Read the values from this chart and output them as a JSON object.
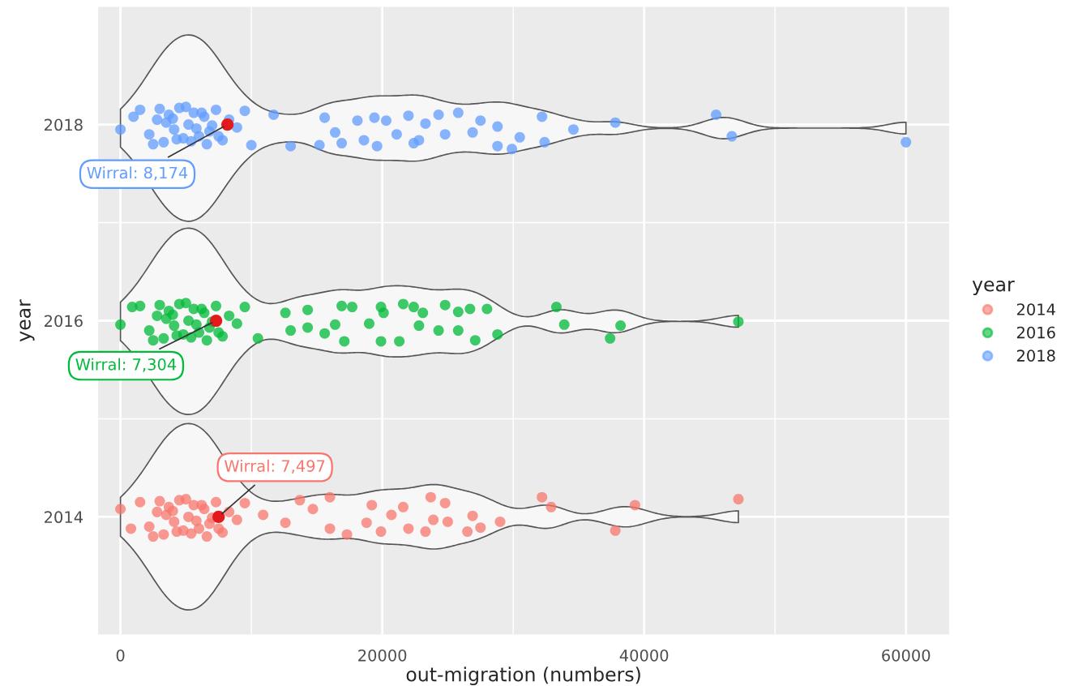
{
  "chart_data": {
    "type": "scatter",
    "xlabel": "out-migration (numbers)",
    "ylabel": "year",
    "legend_title": "year",
    "legend": "right",
    "grid": true,
    "marker": "circle",
    "xlim": [
      -1700,
      63300
    ],
    "xticks": [
      0,
      20000,
      40000,
      60000
    ],
    "ylim": [
      2012.8,
      2019.2
    ],
    "yticks": [
      2014,
      2016,
      2018
    ],
    "series": [
      {
        "name": "2014",
        "color": "#f8766d",
        "x": [
          1500,
          2200,
          2800,
          3300,
          3700,
          4100,
          4500,
          4800,
          5200,
          5600,
          6000,
          6400,
          6800,
          7300,
          7800,
          8300,
          8900,
          9500,
          2500,
          3500,
          4300,
          5000,
          5800,
          6600,
          7500,
          3000,
          4000,
          5400,
          6200,
          7000,
          0,
          800,
          16000,
          19200,
          21600,
          23700,
          24800,
          32200,
          32900,
          39300,
          47200,
          16000,
          17300,
          18800,
          19900,
          22000,
          23300,
          23900,
          25000,
          26500,
          27500,
          29000,
          37800,
          13700,
          12600,
          10900,
          14700,
          20700,
          26900
        ],
        "values": [
          2014.15,
          2013.9,
          2014.05,
          2013.82,
          2014.1,
          2013.95,
          2014.17,
          2013.86,
          2014.0,
          2014.12,
          2013.88,
          2014.08,
          2013.93,
          2014.15,
          2013.84,
          2014.05,
          2013.97,
          2014.14,
          2013.8,
          2014.02,
          2013.85,
          2014.18,
          2013.96,
          2013.8,
          2013.88,
          2014.16,
          2014.06,
          2013.83,
          2014.12,
          2013.99,
          2014.08,
          2013.88,
          2014.2,
          2014.12,
          2014.1,
          2014.2,
          2014.14,
          2014.2,
          2014.1,
          2014.12,
          2014.18,
          2013.88,
          2013.82,
          2013.94,
          2013.85,
          2013.88,
          2013.85,
          2013.97,
          2013.95,
          2013.85,
          2013.89,
          2013.95,
          2013.86,
          2014.17,
          2013.94,
          2014.02,
          2014.08,
          2014.02,
          2014.01
        ]
      },
      {
        "name": "2016",
        "color": "#00ba38",
        "x": [
          1500,
          2200,
          2800,
          3300,
          3700,
          4100,
          4500,
          4800,
          5200,
          5600,
          6000,
          6400,
          6800,
          7300,
          7800,
          8300,
          8900,
          9500,
          2500,
          3500,
          4300,
          5000,
          5800,
          6600,
          7500,
          3000,
          4000,
          5400,
          6200,
          7000,
          0,
          900,
          16900,
          17700,
          19900,
          20100,
          21600,
          22400,
          23100,
          24800,
          25800,
          26700,
          28000,
          33300,
          15600,
          17100,
          19900,
          21300,
          24300,
          25800,
          27100,
          28800,
          33900,
          37400,
          38200,
          47200,
          16400,
          19000,
          22800,
          13000,
          14300,
          10500,
          12600,
          14300
        ],
        "values": [
          2016.15,
          2015.9,
          2016.05,
          2015.82,
          2016.1,
          2015.95,
          2016.17,
          2015.86,
          2016.0,
          2016.12,
          2015.88,
          2016.08,
          2015.93,
          2016.15,
          2015.84,
          2016.05,
          2015.97,
          2016.14,
          2015.8,
          2016.02,
          2015.85,
          2016.18,
          2015.96,
          2015.8,
          2015.88,
          2016.16,
          2016.06,
          2015.83,
          2016.12,
          2015.99,
          2015.96,
          2016.14,
          2016.15,
          2016.14,
          2016.14,
          2016.08,
          2016.17,
          2016.14,
          2016.08,
          2016.16,
          2016.09,
          2016.12,
          2016.12,
          2016.14,
          2015.87,
          2015.79,
          2015.79,
          2015.79,
          2015.9,
          2015.9,
          2015.8,
          2015.86,
          2015.96,
          2015.82,
          2015.95,
          2015.99,
          2015.96,
          2015.97,
          2015.95,
          2015.9,
          2015.93,
          2015.82,
          2016.08,
          2016.11
        ]
      },
      {
        "name": "2018",
        "color": "#619cff",
        "x": [
          1500,
          2200,
          2800,
          3300,
          3700,
          4100,
          4500,
          4800,
          5200,
          5600,
          6000,
          6400,
          6800,
          7300,
          7800,
          8300,
          8900,
          9500,
          2500,
          3500,
          4300,
          5000,
          5800,
          6600,
          7500,
          3000,
          4000,
          5400,
          6200,
          7000,
          0,
          1000,
          18100,
          19400,
          20300,
          22000,
          23300,
          24300,
          25800,
          27500,
          28800,
          32200,
          34600,
          37800,
          45500,
          46700,
          60000,
          18600,
          19600,
          22400,
          22800,
          24800,
          26900,
          28800,
          29900,
          30500,
          32400,
          21100,
          16900,
          15200,
          16400,
          13000,
          10000,
          11700,
          15600
        ],
        "values": [
          2018.15,
          2017.9,
          2018.05,
          2017.82,
          2018.1,
          2017.95,
          2018.17,
          2017.86,
          2018.0,
          2018.12,
          2017.88,
          2018.08,
          2017.93,
          2018.15,
          2017.84,
          2018.05,
          2017.97,
          2018.14,
          2017.8,
          2018.02,
          2017.85,
          2018.18,
          2017.96,
          2017.8,
          2017.88,
          2018.16,
          2018.06,
          2017.83,
          2018.12,
          2017.99,
          2017.95,
          2018.08,
          2018.04,
          2018.07,
          2018.04,
          2018.09,
          2018.01,
          2018.1,
          2018.12,
          2018.04,
          2017.98,
          2018.08,
          2017.95,
          2018.02,
          2018.1,
          2017.88,
          2017.82,
          2017.84,
          2017.78,
          2017.81,
          2017.84,
          2017.9,
          2017.92,
          2017.78,
          2017.75,
          2017.87,
          2017.82,
          2017.9,
          2017.81,
          2017.79,
          2017.92,
          2017.78,
          2017.79,
          2018.1,
          2018.07
        ]
      },
      {
        "color": "#e31a1c",
        "x": [
          7497,
          7304,
          8174
        ],
        "values": [
          2014,
          2016,
          2018
        ]
      }
    ],
    "annotations": [
      {
        "text": "Wirral: 8,174",
        "x": 8174,
        "y": 2018
      },
      {
        "text": "Wirral: 7,304",
        "x": 7304,
        "y": 2016
      },
      {
        "text": "Wirral: 7,497",
        "x": 7497,
        "y": 2014
      }
    ]
  }
}
